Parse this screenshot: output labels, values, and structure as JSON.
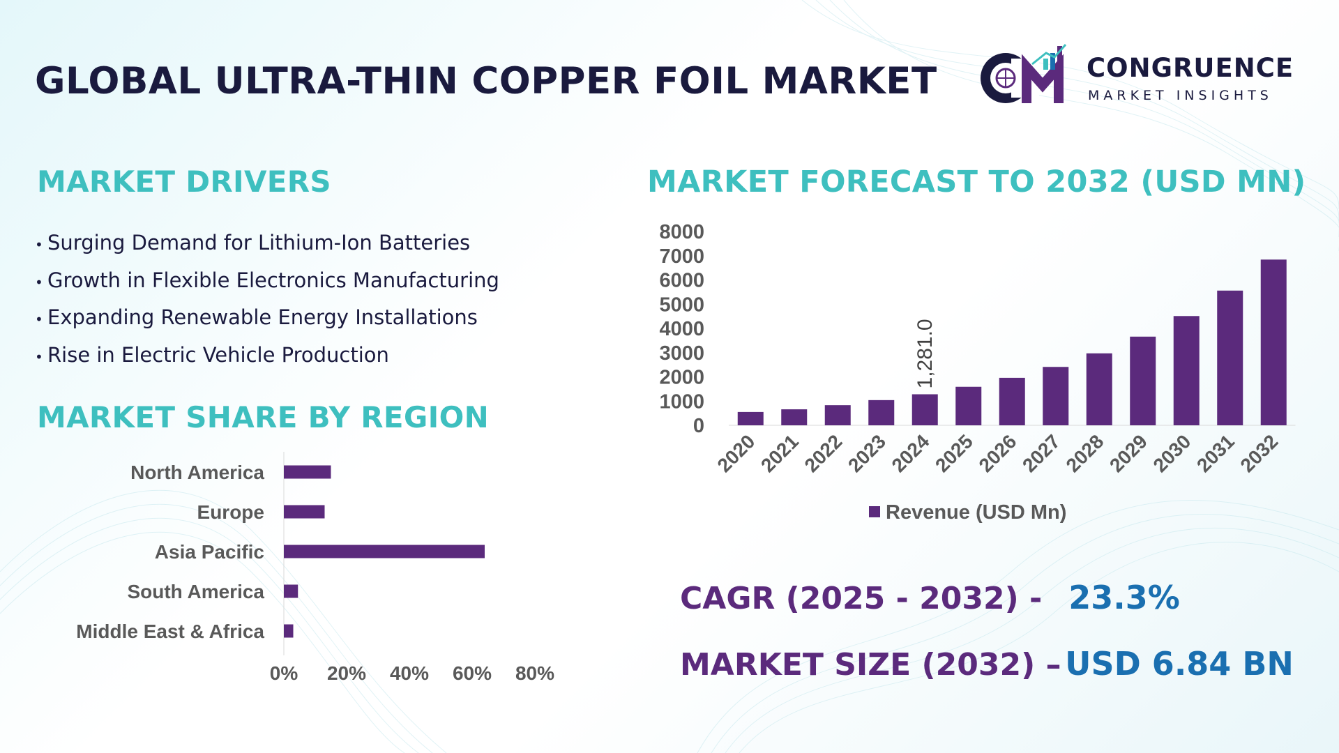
{
  "header": {
    "title": "GLOBAL ULTRA-THIN COPPER FOIL MARKET",
    "logo_name": "CONGRUENCE",
    "logo_subtitle": "MARKET INSIGHTS"
  },
  "drivers": {
    "heading": "MARKET DRIVERS",
    "items": [
      "Surging Demand for Lithium-Ion Batteries",
      "Growth in Flexible Electronics Manufacturing",
      "Expanding Renewable Energy Installations",
      "Rise in Electric Vehicle Production"
    ]
  },
  "region_heading": "MARKET SHARE BY REGION",
  "forecast_heading": "MARKET FORECAST TO 2032 (USD MN)",
  "stats": {
    "cagr_label": "CAGR (2025 - 2032) -",
    "cagr_value": "23.3%",
    "size_label": "MARKET SIZE (2032) –",
    "size_value": "USD 6.84 BN"
  },
  "colors": {
    "bar": "#5b2a7c",
    "heading_teal": "#3ebfbf",
    "title_navy": "#1a1a3e",
    "value_blue": "#1a6fb0",
    "axis_text": "#595959"
  },
  "chart_data": [
    {
      "type": "bar",
      "orientation": "horizontal",
      "categories": [
        "North America",
        "Europe",
        "Asia Pacific",
        "South America",
        "Middle East & Africa"
      ],
      "values": [
        15,
        13,
        64,
        4.5,
        3
      ],
      "xlim": [
        0,
        80
      ],
      "x_ticks": [
        "0%",
        "20%",
        "40%",
        "60%",
        "80%"
      ],
      "grid": false,
      "legend": "none"
    },
    {
      "type": "bar",
      "categories": [
        "2020",
        "2021",
        "2022",
        "2023",
        "2024",
        "2025",
        "2026",
        "2027",
        "2028",
        "2029",
        "2030",
        "2031",
        "2032"
      ],
      "series": [
        {
          "name": "Revenue (USD Mn)",
          "values": [
            550,
            660,
            830,
            1040,
            1281,
            1590,
            1960,
            2410,
            2970,
            3660,
            4510,
            5560,
            6840
          ]
        }
      ],
      "ylim": [
        0,
        8000
      ],
      "y_ticks": [
        "0",
        "1000",
        "2000",
        "3000",
        "4000",
        "5000",
        "6000",
        "7000",
        "8000"
      ],
      "annotations": [
        {
          "category": "2024",
          "label": "1,281.0"
        }
      ],
      "grid": false,
      "legend": "bottom"
    }
  ]
}
